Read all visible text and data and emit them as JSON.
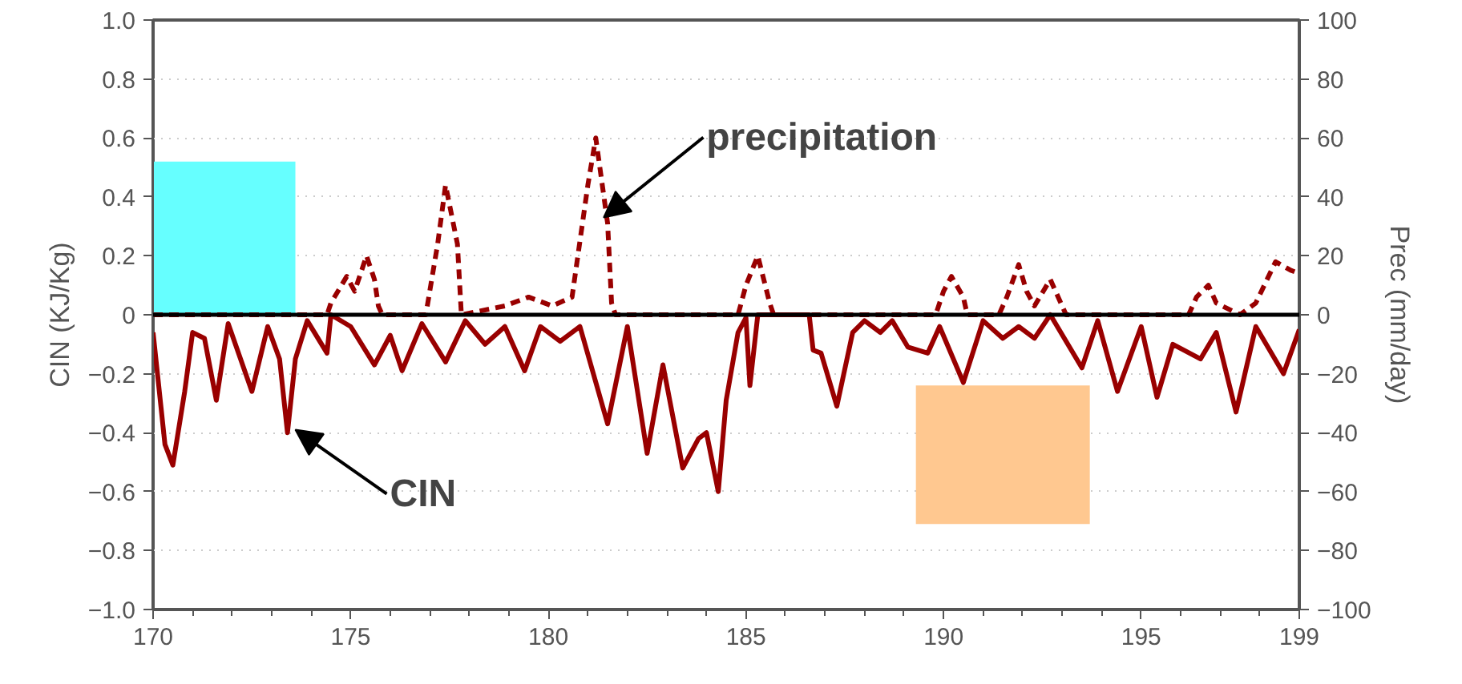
{
  "chart_data": {
    "type": "line",
    "xlim": [
      170,
      199
    ],
    "xticks": [
      170,
      {
        "value": 171,
        "label": null
      },
      {
        "value": 172,
        "label": null
      },
      {
        "value": 173,
        "label": null
      },
      {
        "value": 174,
        "label": null
      },
      175,
      {
        "value": 176,
        "label": null
      },
      {
        "value": 177,
        "label": null
      },
      {
        "value": 178,
        "label": null
      },
      {
        "value": 179,
        "label": null
      },
      180,
      {
        "value": 181,
        "label": null
      },
      {
        "value": 182,
        "label": null
      },
      {
        "value": 183,
        "label": null
      },
      {
        "value": 184,
        "label": null
      },
      185,
      {
        "value": 186,
        "label": null
      },
      {
        "value": 187,
        "label": null
      },
      {
        "value": 188,
        "label": null
      },
      {
        "value": 189,
        "label": null
      },
      190,
      {
        "value": 191,
        "label": null
      },
      {
        "value": 192,
        "label": null
      },
      {
        "value": 193,
        "label": null
      },
      {
        "value": 194,
        "label": null
      },
      195,
      {
        "value": 196,
        "label": null
      },
      {
        "value": 197,
        "label": null
      },
      {
        "value": 198,
        "label": null
      },
      199
    ],
    "ylabel": "CIN (KJ/Kg)",
    "y2label": "Prec (mm/day)",
    "ylim": [
      -1.0,
      1.0
    ],
    "yticks": [
      {
        "value": -1.0,
        "label": "−1.0"
      },
      {
        "value": -0.8,
        "label": "−0.8"
      },
      {
        "value": -0.6,
        "label": "−0.6"
      },
      {
        "value": -0.4,
        "label": "−0.4"
      },
      {
        "value": -0.2,
        "label": "−0.2"
      },
      0,
      {
        "value": 0.2,
        "label": "0.2"
      },
      {
        "value": 0.4,
        "label": "0.4"
      },
      {
        "value": 0.6,
        "label": "0.6"
      },
      {
        "value": 0.8,
        "label": "0.8"
      },
      {
        "value": 1.0,
        "label": "1.0"
      }
    ],
    "y2lim": [
      -100,
      100
    ],
    "y2ticks": [
      {
        "value": -100,
        "label": "−100"
      },
      {
        "value": -80,
        "label": "−80"
      },
      {
        "value": -60,
        "label": "−60"
      },
      {
        "value": -40,
        "label": "−40"
      },
      {
        "value": -20,
        "label": "−20"
      },
      0,
      20,
      40,
      60,
      80,
      100
    ],
    "grid": "y",
    "ref_lines": [
      {
        "axis": "y",
        "value": 0,
        "color": "#000000"
      }
    ],
    "annotations": [
      {
        "text": "precipitation",
        "x": 181.4,
        "y": 0.33
      },
      {
        "text": "CIN",
        "x": 173.6,
        "y": -0.39
      }
    ],
    "series": [
      {
        "type": "area",
        "color": "#66ffff",
        "x": [
          170.0,
          173.6
        ],
        "values": [
          0.52,
          0.52
        ]
      },
      {
        "type": "bar",
        "color": "#ffc890",
        "x": [
          191.5
        ],
        "base": [
          -0.24
        ],
        "values": [
          -0.47
        ]
      },
      {
        "color": "#990000",
        "line_style": "solid",
        "x": [
          170.0,
          170.3,
          170.5,
          170.8,
          171.0,
          171.3,
          171.6,
          171.9,
          172.5,
          172.9,
          173.2,
          173.4,
          173.6,
          173.9,
          174.4,
          174.5,
          175.0,
          175.6,
          176.0,
          176.3,
          176.8,
          177.4,
          177.9,
          178.4,
          178.9,
          179.4,
          179.8,
          180.3,
          180.8,
          181.5,
          182.0,
          182.5,
          182.9,
          183.4,
          183.8,
          184.0,
          184.3,
          184.5,
          184.8,
          185.0,
          185.1,
          185.3,
          186.6,
          186.7,
          186.9,
          187.3,
          187.7,
          188.0,
          188.4,
          188.7,
          189.1,
          189.6,
          189.9,
          190.5,
          191.0,
          191.5,
          191.9,
          192.3,
          192.7,
          193.5,
          193.9,
          194.4,
          195.0,
          195.4,
          195.8,
          196.5,
          196.9,
          197.4,
          197.9,
          198.6,
          199.0
        ],
        "values": [
          -0.06,
          -0.44,
          -0.51,
          -0.26,
          -0.06,
          -0.08,
          -0.29,
          -0.03,
          -0.26,
          -0.04,
          -0.15,
          -0.4,
          -0.15,
          -0.02,
          -0.13,
          0.0,
          -0.04,
          -0.17,
          -0.07,
          -0.19,
          -0.03,
          -0.16,
          -0.02,
          -0.1,
          -0.04,
          -0.19,
          -0.04,
          -0.09,
          -0.04,
          -0.37,
          -0.04,
          -0.47,
          -0.17,
          -0.52,
          -0.42,
          -0.4,
          -0.6,
          -0.29,
          -0.06,
          -0.01,
          -0.24,
          0.0,
          0.0,
          -0.12,
          -0.13,
          -0.31,
          -0.06,
          -0.02,
          -0.06,
          -0.02,
          -0.11,
          -0.13,
          -0.04,
          -0.23,
          -0.02,
          -0.08,
          -0.04,
          -0.08,
          0.0,
          -0.18,
          -0.02,
          -0.26,
          -0.04,
          -0.28,
          -0.1,
          -0.15,
          -0.06,
          -0.33,
          -0.04,
          -0.2,
          -0.05
        ]
      },
      {
        "color": "#990000",
        "line_style": "dashed",
        "axis": "y2",
        "x": [
          170.0,
          174.4,
          174.5,
          174.9,
          175.1,
          175.4,
          175.6,
          175.7,
          175.8,
          176.9,
          177.2,
          177.4,
          177.7,
          177.8,
          178.9,
          179.5,
          180.1,
          180.6,
          181.0,
          181.2,
          181.5,
          181.6,
          181.7,
          184.8,
          185.0,
          185.3,
          185.6,
          185.7,
          189.8,
          190.0,
          190.2,
          190.5,
          190.6,
          191.4,
          191.6,
          191.9,
          192.1,
          192.3,
          192.7,
          192.9,
          193.1,
          196.2,
          196.4,
          196.7,
          196.9,
          197.5,
          197.9,
          198.4,
          198.8,
          199.0
        ],
        "values": [
          0,
          0,
          4,
          13,
          8,
          20,
          12,
          3,
          0,
          0,
          24,
          44,
          24,
          0,
          3,
          6,
          3,
          6,
          44,
          60,
          31,
          4,
          0,
          0,
          10,
          20,
          4,
          0,
          0,
          8,
          13,
          6,
          0,
          0,
          6,
          17,
          8,
          3,
          12,
          6,
          0,
          0,
          6,
          10,
          4,
          0,
          4,
          18,
          15,
          14
        ]
      }
    ]
  }
}
